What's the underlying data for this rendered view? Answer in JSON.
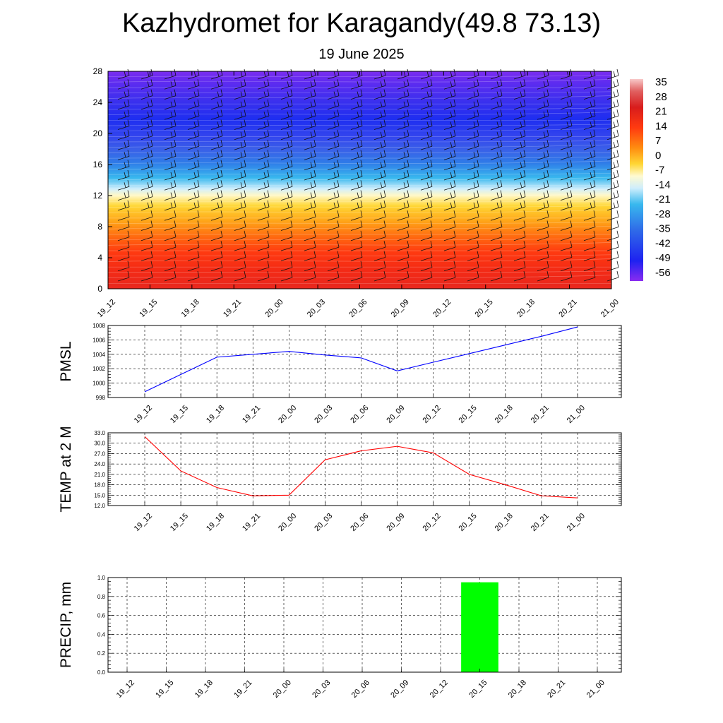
{
  "title": "Kazhydromet for Karagandy(49.8 73.13)",
  "subtitle": "19 June 2025",
  "colors": {
    "pmsl_line": "#0000ff",
    "temp_line": "#ff0000",
    "precip_bar": "#00ff00",
    "grid": "#000000"
  },
  "chart_data": [
    {
      "type": "heatmap",
      "title": "",
      "x_ticks": [
        "19_12",
        "19_15",
        "19_18",
        "19_21",
        "20_00",
        "20_03",
        "20_06",
        "20_09",
        "20_12",
        "20_15",
        "20_18",
        "20_21",
        "21_00"
      ],
      "y_ticks": [
        0,
        4,
        8,
        12,
        16,
        20,
        24,
        28
      ],
      "ylim": [
        0,
        28
      ],
      "colorbar_labels": [
        35,
        28,
        21,
        14,
        7,
        0,
        -7,
        -14,
        -21,
        -28,
        -35,
        -42,
        -49,
        -56
      ],
      "colorbar_range": [
        -60,
        38
      ],
      "description_values": "temperature decreasing with height, wind barbs overlay"
    },
    {
      "type": "line",
      "ylabel": "PMSL",
      "categories": [
        "19_12",
        "19_15",
        "19_18",
        "19_21",
        "20_00",
        "20_03",
        "20_06",
        "20_09",
        "20_12",
        "20_15",
        "20_18",
        "20_21",
        "21_00"
      ],
      "values": [
        998.8,
        1001.2,
        1003.6,
        1004.0,
        1004.4,
        1003.9,
        1003.5,
        1001.7,
        1002.9,
        1004.1,
        1005.3,
        1006.5,
        1007.8
      ],
      "y_ticks": [
        998,
        1000,
        1002,
        1004,
        1006,
        1008
      ],
      "ylim": [
        998,
        1008
      ],
      "grid": true
    },
    {
      "type": "line",
      "ylabel": "TEMP at 2 M",
      "categories": [
        "19_12",
        "19_15",
        "19_18",
        "19_21",
        "20_00",
        "20_03",
        "20_06",
        "20_09",
        "20_12",
        "20_15",
        "20_18",
        "20_21",
        "21_00"
      ],
      "values": [
        31.9,
        22.0,
        17.2,
        14.8,
        15.0,
        25.2,
        27.8,
        29.1,
        27.2,
        21.0,
        18.0,
        14.8,
        14.2
      ],
      "y_ticks": [
        "12.0",
        "15.0",
        "18.0",
        "21.0",
        "24.0",
        "27.0",
        "30.0",
        "33.0"
      ],
      "ylim": [
        12,
        33
      ],
      "grid": true
    },
    {
      "type": "bar",
      "ylabel": "PRECIP, mm",
      "categories": [
        "19_12",
        "19_15",
        "19_18",
        "19_21",
        "20_00",
        "20_03",
        "20_06",
        "20_09",
        "20_12",
        "20_15",
        "20_18",
        "20_21",
        "21_00"
      ],
      "values": [
        0,
        0,
        0,
        0,
        0,
        0,
        0,
        0,
        0,
        0.95,
        0,
        0,
        0
      ],
      "y_ticks": [
        "0.0",
        "0.2",
        "0.4",
        "0.6",
        "0.8",
        "1.0"
      ],
      "ylim": [
        0,
        1.0
      ],
      "grid": true
    }
  ]
}
